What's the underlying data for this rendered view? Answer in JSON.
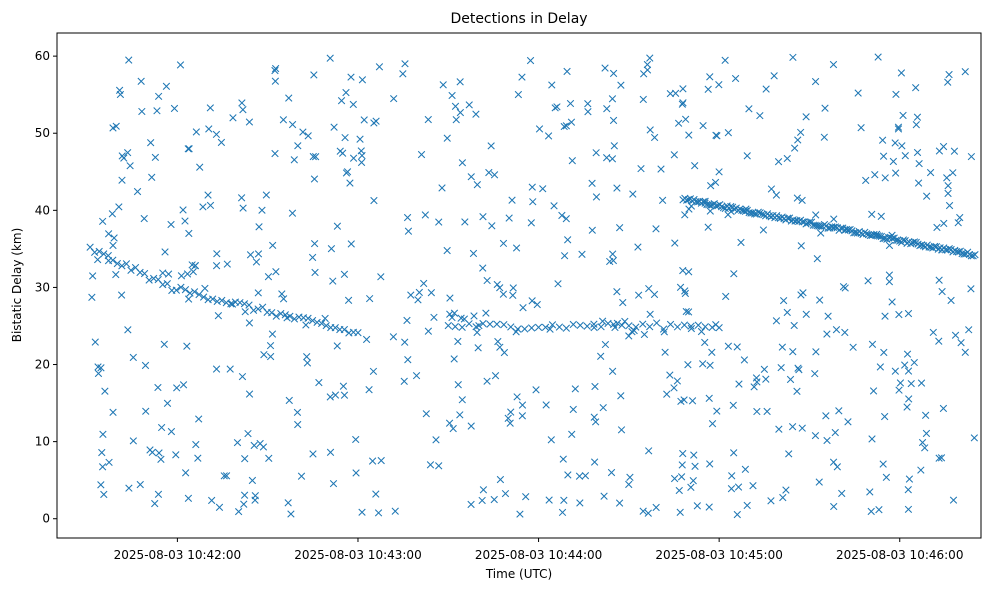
{
  "chart_data": {
    "type": "scatter",
    "title": "Detections in Delay",
    "xlabel": "Time (UTC)",
    "ylabel": "Bistatic Delay (km)",
    "x_axis_type": "time",
    "xlim": [
      "2025-08-03 10:41:20",
      "2025-08-03 10:46:27"
    ],
    "ylim": [
      -2.5,
      63
    ],
    "x_ticks": [
      "2025-08-03 10:42:00",
      "2025-08-03 10:43:00",
      "2025-08-03 10:44:00",
      "2025-08-03 10:45:00",
      "2025-08-03 10:46:00"
    ],
    "y_ticks": [
      0,
      10,
      20,
      30,
      40,
      50,
      60
    ],
    "grid": false,
    "legend": "none",
    "marker": "x",
    "color": "#1f77b4",
    "point_generation": {
      "time_start": "2025-08-03 10:41:31",
      "time_end": "2025-08-03 10:46:25",
      "noise_points": 700,
      "noise_y_range": [
        0.5,
        60
      ],
      "track_a": {
        "y_start": 35,
        "y_mid": 30,
        "y_end": 24,
        "points": 60
      },
      "track_b": {
        "y_start": 25,
        "y_end": 25,
        "points": 40
      },
      "track_c": {
        "time_start": "2025-08-03 10:44:48",
        "y_start": 41.5,
        "y_end": 34.2,
        "points": 160
      }
    }
  }
}
